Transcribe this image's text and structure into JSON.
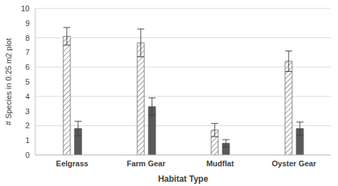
{
  "chart_data": {
    "type": "bar",
    "x_label": "Habitat Type",
    "y_label": "# Species in 0.25 m2 plot",
    "categories": [
      "Eelgrass",
      "Farm Gear",
      "Mudflat",
      "Oyster Gear"
    ],
    "series": [
      {
        "color": "#7f7f7f",
        "marker": "hatch",
        "values": [
          8.1,
          7.65,
          1.7,
          6.4
        ],
        "errors": [
          0.6,
          0.95,
          0.45,
          0.7
        ]
      },
      {
        "color": "#595959",
        "values": [
          1.8,
          3.3,
          0.8,
          1.8
        ],
        "errors": [
          0.5,
          0.6,
          0.25,
          0.45
        ]
      }
    ],
    "ylim": [
      0,
      10
    ],
    "yticks": [
      0,
      1,
      2,
      3,
      4,
      5,
      6,
      7,
      8,
      9,
      10
    ],
    "grid": true
  }
}
